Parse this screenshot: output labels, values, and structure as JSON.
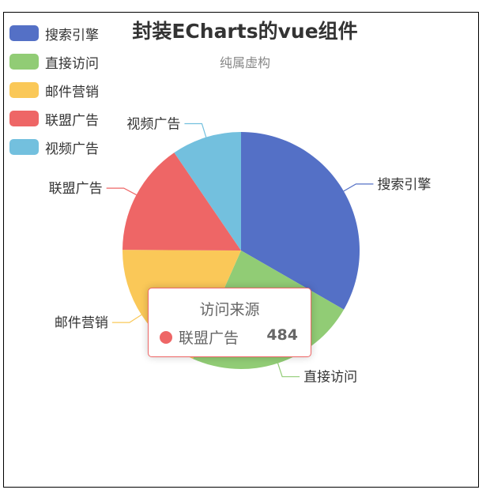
{
  "title": "封装ECharts的vue组件",
  "subtitle": "纯属虚构",
  "legend": {
    "items": [
      {
        "label": "搜索引擎",
        "color": "#5470c6"
      },
      {
        "label": "直接访问",
        "color": "#91cc75"
      },
      {
        "label": "邮件营销",
        "color": "#fac858"
      },
      {
        "label": "联盟广告",
        "color": "#ee6666"
      },
      {
        "label": "视频广告",
        "color": "#73c0de"
      }
    ]
  },
  "tooltip": {
    "title": "访问来源",
    "name": "联盟广告",
    "value": "484",
    "color": "#ee6666"
  },
  "chart_data": {
    "type": "pie",
    "title": "封装ECharts的vue组件",
    "subtitle": "纯属虚构",
    "legend_position": "top-left",
    "slices": [
      {
        "name": "搜索引擎",
        "value": 1048,
        "color": "#5470c6"
      },
      {
        "name": "直接访问",
        "value": 735,
        "color": "#91cc75"
      },
      {
        "name": "邮件营销",
        "value": 580,
        "color": "#fac858"
      },
      {
        "name": "联盟广告",
        "value": 484,
        "color": "#ee6666"
      },
      {
        "name": "视频广告",
        "value": 300,
        "color": "#73c0de"
      }
    ]
  }
}
